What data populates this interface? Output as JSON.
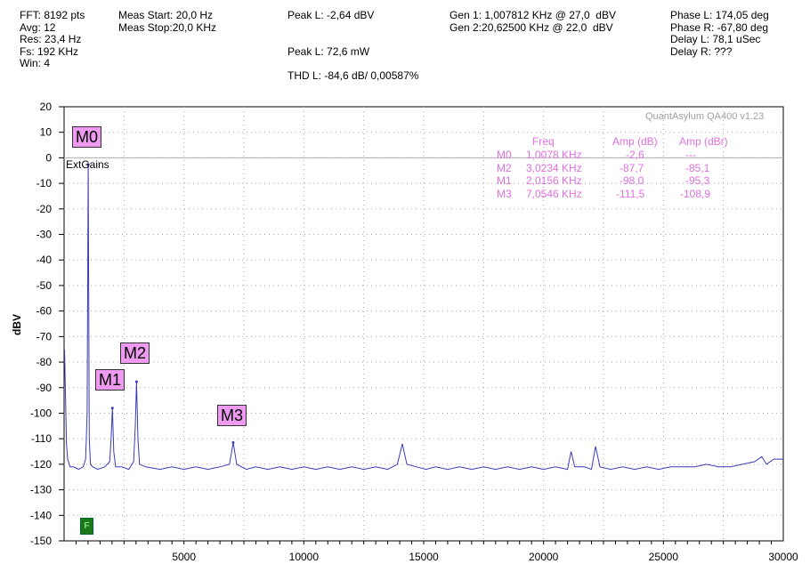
{
  "header": {
    "col1": [
      "FFT: 8192 pts",
      "Avg: 12",
      "Res: 23,4 Hz",
      "Fs: 192 KHz",
      "Win: 4"
    ],
    "col2": [
      "Meas Start: 20,0 Hz",
      "Meas Stop:20,0 KHz"
    ],
    "col3": [
      "Peak L: -2,64 dBV",
      "",
      "",
      "Peak L: 72,6 mW",
      "",
      "THD L: -84,6 dB/ 0,00587%"
    ],
    "col4": [
      "Gen 1: 1,007812 KHz @ 27,0  dBV",
      "Gen 2:20,62500 KHz @ 22,0  dBV"
    ],
    "col5": [
      "Phase L: 174,05 deg",
      "Phase R: -67,80 deg",
      "Delay L: 78,1 uSec",
      "Delay R: ???"
    ]
  },
  "watermark": "QuantAsylum QA400 v1.23",
  "ext_gains_label": "ExtGains",
  "trigger_label": "F",
  "colors": {
    "trace": "#3b3bb5",
    "marker_bg": "#ee9af0",
    "marker_text": "#e070e0",
    "grid": "#aaaaaa"
  },
  "marker_table": {
    "headers": [
      "Freq",
      "Amp (dB)",
      "Amp (dBr)"
    ],
    "rows": [
      {
        "name": "M0",
        "freq": "1,0078 KHz",
        "amp": "-2,6",
        "ampr": "---"
      },
      {
        "name": "M2",
        "freq": "3,0234 KHz",
        "amp": "-87,7",
        "ampr": "-85,1"
      },
      {
        "name": "M1",
        "freq": "2,0156 KHz",
        "amp": "-98,0",
        "ampr": "-95,3"
      },
      {
        "name": "M3",
        "freq": "7,0546 KHz",
        "amp": "-111,5",
        "ampr": "-108,9"
      }
    ]
  },
  "chart_data": {
    "type": "line",
    "title": "",
    "xlabel": "",
    "ylabel": "dBV",
    "xlim": [
      0,
      30000
    ],
    "ylim": [
      -150,
      20
    ],
    "grid": true,
    "x_ticks": [
      5000,
      10000,
      15000,
      20000,
      25000,
      30000
    ],
    "y_ticks": [
      20,
      10,
      0,
      -10,
      -20,
      -30,
      -40,
      -50,
      -60,
      -70,
      -80,
      -90,
      -100,
      -110,
      -120,
      -130,
      -140,
      -150
    ],
    "markers": [
      {
        "name": "M0",
        "x": 1008,
        "y": -2.6
      },
      {
        "name": "M1",
        "x": 2016,
        "y": -98.0
      },
      {
        "name": "M2",
        "x": 3023,
        "y": -87.7
      },
      {
        "name": "M3",
        "x": 7055,
        "y": -111.5
      }
    ],
    "series": [
      {
        "x": [
          20,
          100,
          150,
          250,
          400,
          600,
          800,
          900,
          960,
          1008,
          1050,
          1100,
          1200,
          1400,
          1700,
          1900,
          1960,
          2016,
          2070,
          2150,
          2400,
          2700,
          2900,
          2970,
          3023,
          3080,
          3150,
          3400,
          4000,
          4500,
          5000,
          5500,
          6000,
          6500,
          6900,
          7055,
          7200,
          7600,
          8000,
          8500,
          9000,
          9500,
          10000,
          10500,
          11000,
          11500,
          12000,
          12500,
          13000,
          13500,
          13900,
          14110,
          14300,
          14700,
          15100,
          15500,
          16000,
          16500,
          17000,
          17500,
          18000,
          18500,
          19000,
          19500,
          20000,
          20500,
          21000,
          21150,
          21300,
          21700,
          22000,
          22170,
          22350,
          22800,
          23300,
          23800,
          24300,
          24800,
          25300,
          25800,
          26300,
          26800,
          27300,
          27800,
          28300,
          28800,
          29100,
          29300,
          29600,
          30000
        ],
        "y": [
          -75,
          -112,
          -118,
          -121,
          -121,
          -122,
          -121,
          -118,
          -100,
          -2.6,
          -110,
          -120,
          -121,
          -122,
          -121,
          -119,
          -110,
          -98.0,
          -115,
          -121,
          -121,
          -122,
          -119,
          -105,
          -87.7,
          -110,
          -120,
          -121,
          -122,
          -121,
          -122,
          -121,
          -122,
          -121,
          -120,
          -111.5,
          -120,
          -122,
          -121,
          -122,
          -121,
          -122,
          -121,
          -122,
          -121,
          -122,
          -121,
          -122,
          -121,
          -122,
          -120,
          -112,
          -120,
          -121,
          -122,
          -121,
          -122,
          -121,
          -122,
          -121,
          -122,
          -121,
          -122,
          -121,
          -122,
          -121,
          -122,
          -115,
          -121,
          -121,
          -122,
          -113,
          -121,
          -122,
          -121,
          -122,
          -121,
          -122,
          -121,
          -121,
          -121,
          -120,
          -121,
          -121,
          -120,
          -119,
          -117,
          -120,
          -118,
          -118
        ]
      }
    ]
  }
}
